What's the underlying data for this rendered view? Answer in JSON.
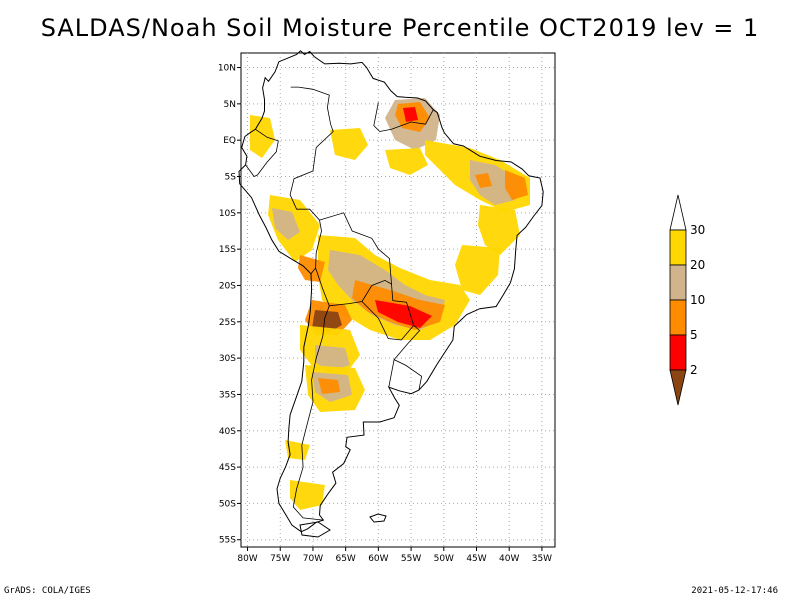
{
  "title": "SALDAS/Noah Soil Moisture Percentile OCT2019 lev = 1",
  "map": {
    "lat_ticks": [
      "10N",
      "5N",
      "EQ",
      "5S",
      "10S",
      "15S",
      "20S",
      "25S",
      "30S",
      "35S",
      "40S",
      "45S",
      "50S",
      "55S"
    ],
    "lon_ticks": [
      "80W",
      "75W",
      "70W",
      "65W",
      "60W",
      "55W",
      "50W",
      "45W",
      "40W",
      "35W"
    ],
    "lat_range": [
      12,
      -56
    ],
    "lon_range": [
      -81,
      -33
    ],
    "grid": true
  },
  "colorbar": {
    "levels": [
      "2",
      "5",
      "10",
      "20",
      "30"
    ],
    "colors": [
      "#8b4513",
      "#ff0000",
      "#ff8c00",
      "#d2b48c",
      "#ffd700"
    ],
    "extend": "both"
  },
  "footer": {
    "left": "GrADS: COLA/IGES",
    "right": "2021-05-12-17:46"
  }
}
